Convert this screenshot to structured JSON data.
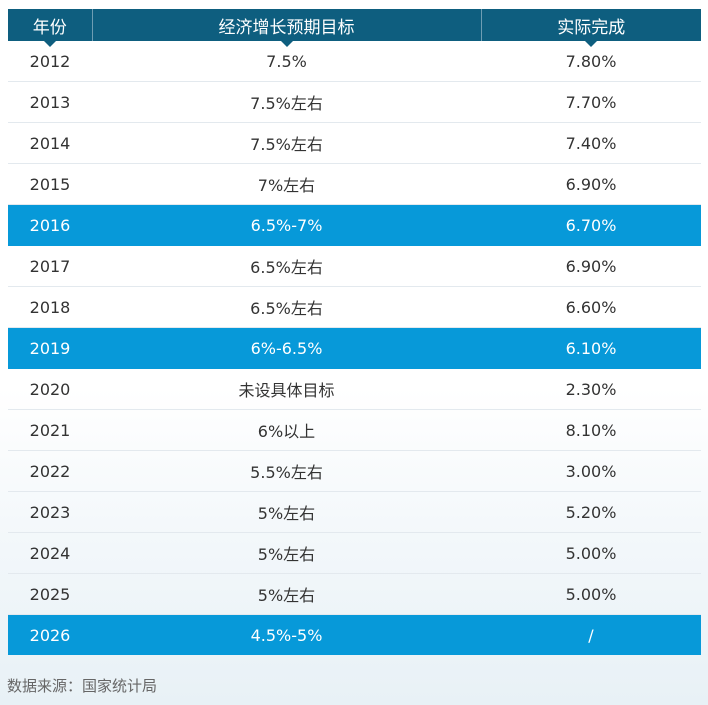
{
  "chart_data": {
    "type": "table",
    "columns": [
      "年份",
      "经济增长预期目标",
      "实际完成"
    ],
    "rows": [
      {
        "year": "2012",
        "target": "7.5%",
        "actual": "7.80%",
        "highlight": false
      },
      {
        "year": "2013",
        "target": "7.5%左右",
        "actual": "7.70%",
        "highlight": false
      },
      {
        "year": "2014",
        "target": "7.5%左右",
        "actual": "7.40%",
        "highlight": false
      },
      {
        "year": "2015",
        "target": "7%左右",
        "actual": "6.90%",
        "highlight": false
      },
      {
        "year": "2016",
        "target": "6.5%-7%",
        "actual": "6.70%",
        "highlight": true
      },
      {
        "year": "2017",
        "target": "6.5%左右",
        "actual": "6.90%",
        "highlight": false
      },
      {
        "year": "2018",
        "target": "6.5%左右",
        "actual": "6.60%",
        "highlight": false
      },
      {
        "year": "2019",
        "target": "6%-6.5%",
        "actual": "6.10%",
        "highlight": true
      },
      {
        "year": "2020",
        "target": "未设具体目标",
        "actual": "2.30%",
        "highlight": false
      },
      {
        "year": "2021",
        "target": "6%以上",
        "actual": "8.10%",
        "highlight": false
      },
      {
        "year": "2022",
        "target": "5.5%左右",
        "actual": "3.00%",
        "highlight": false
      },
      {
        "year": "2023",
        "target": "5%左右",
        "actual": "5.20%",
        "highlight": false
      },
      {
        "year": "2024",
        "target": "5%左右",
        "actual": "5.00%",
        "highlight": false
      },
      {
        "year": "2025",
        "target": "5%左右",
        "actual": "5.00%",
        "highlight": false
      },
      {
        "year": "2026",
        "target": "4.5%-5%",
        "actual": "/",
        "highlight": true
      }
    ]
  },
  "colors": {
    "header_bg": "#0e5e7f",
    "highlight_bg": "#0799d9",
    "text": "#333333"
  },
  "source": "数据来源：国家统计局"
}
